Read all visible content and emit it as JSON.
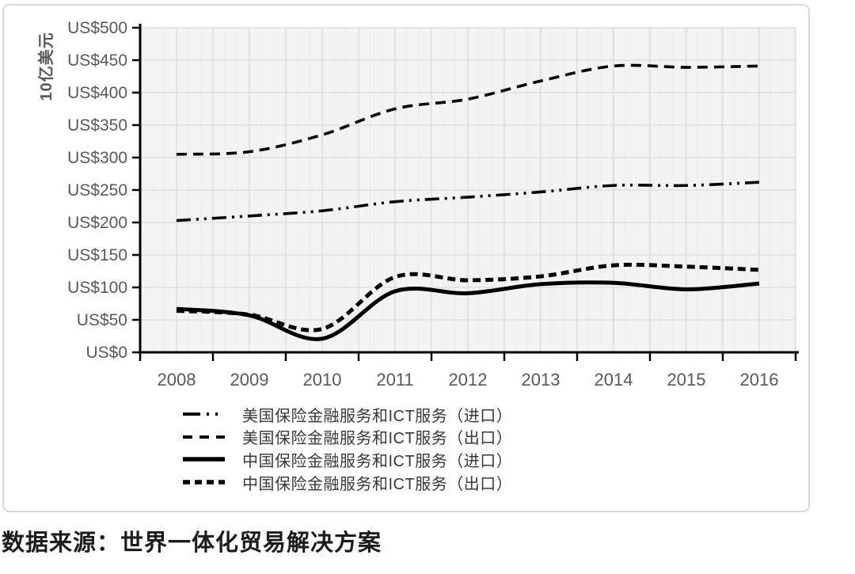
{
  "figure": {
    "y_axis_title": "10亿美元",
    "source_note": "数据来源：世界一体化贸易解决方案"
  },
  "chart_data": {
    "type": "line",
    "x": [
      2008,
      2009,
      2010,
      2011,
      2012,
      2013,
      2014,
      2015,
      2016
    ],
    "series": [
      {
        "name": "美国保险金融服务和ICT服务（进口）",
        "style": "dash-dot-dot",
        "color": "#000000",
        "values": [
          203,
          210,
          218,
          232,
          239,
          247,
          257,
          257,
          262
        ]
      },
      {
        "name": "美国保险金融服务和ICT服务（出口）",
        "style": "dashed",
        "color": "#000000",
        "values": [
          305,
          309,
          335,
          375,
          390,
          418,
          441,
          439,
          441
        ]
      },
      {
        "name": "中国保险金融服务和ICT服务（进口）",
        "style": "solid",
        "color": "#000000",
        "values": [
          67,
          57,
          21,
          94,
          91,
          105,
          107,
          97,
          106
        ]
      },
      {
        "name": "中国保险金融服务和ICT服务（出口）",
        "style": "dashed-thick",
        "color": "#000000",
        "values": [
          64,
          58,
          36,
          116,
          111,
          117,
          134,
          132,
          127
        ]
      }
    ],
    "title": "",
    "xlabel": "",
    "ylabel": "10亿美元",
    "ylim": [
      0,
      500
    ],
    "ytick_step": 50,
    "ytick_prefix": "US$",
    "grid": true,
    "smooth_lines": true,
    "legend_position": "bottom-left",
    "source_note": "数据来源：世界一体化贸易解决方案"
  }
}
